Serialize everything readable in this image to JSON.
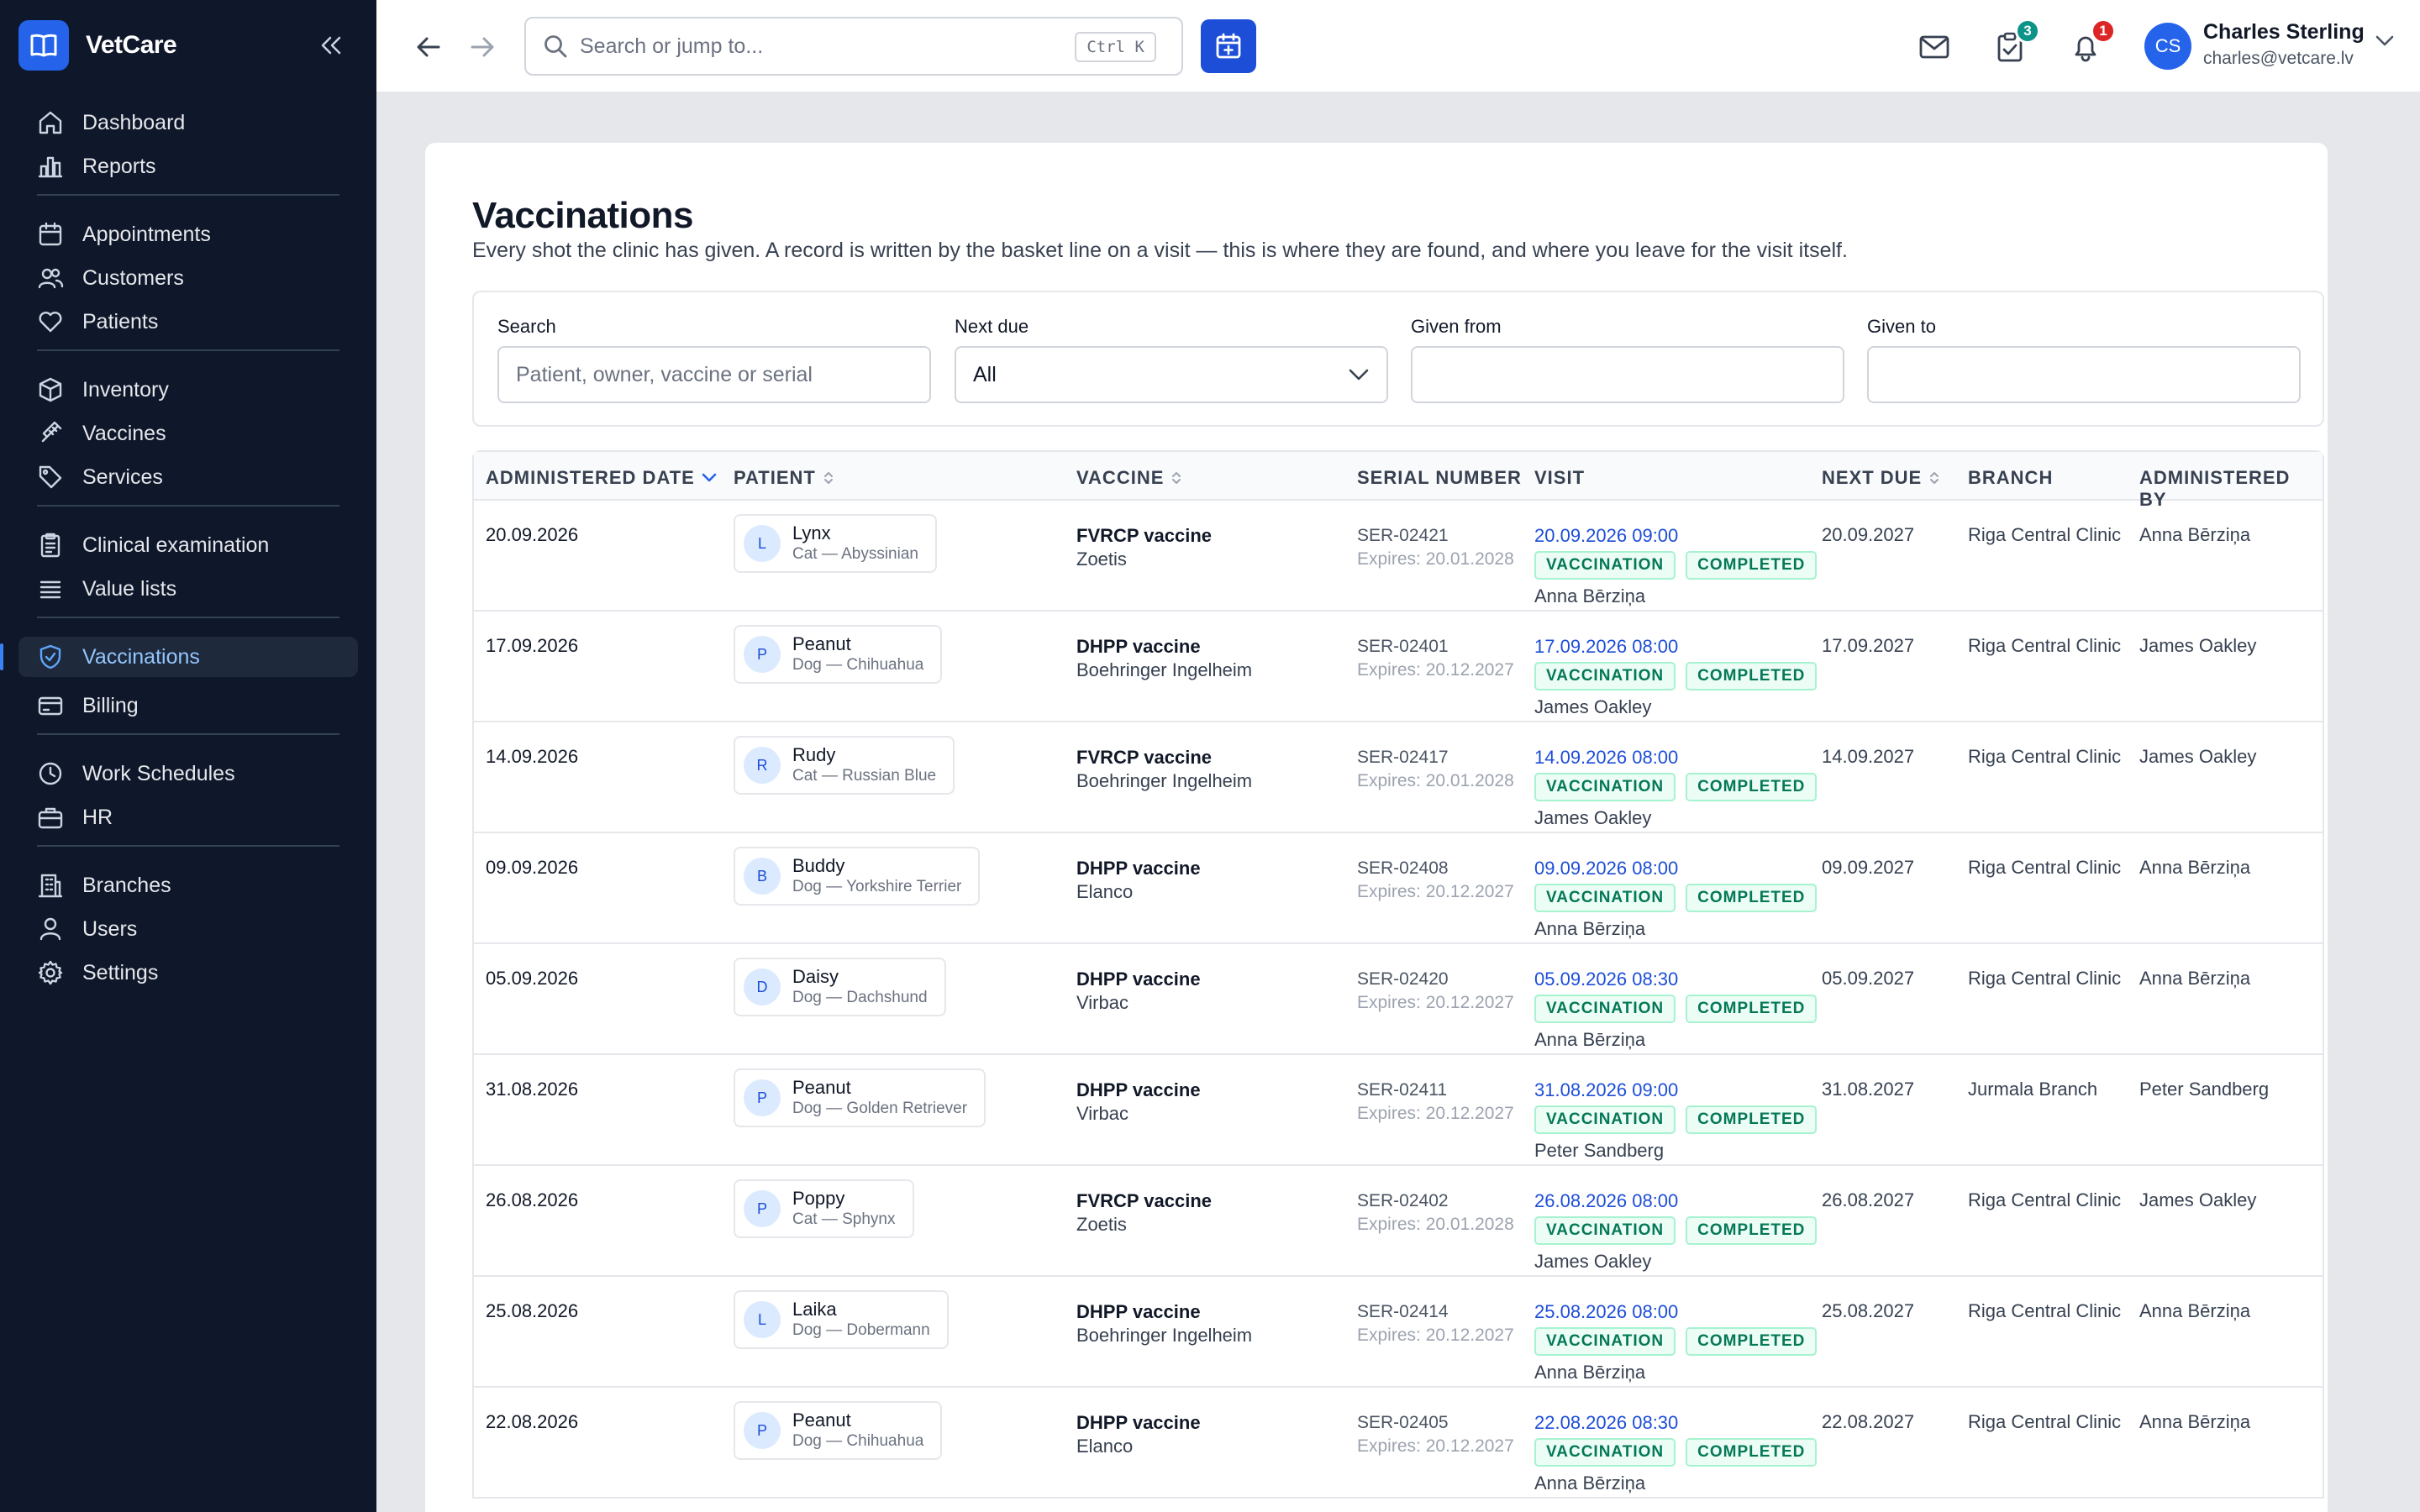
{
  "brand": {
    "name": "VetCare"
  },
  "sidebar": {
    "groups": [
      [
        {
          "label": "Dashboard",
          "icon": "home-icon"
        },
        {
          "label": "Reports",
          "icon": "bar-chart-icon"
        }
      ],
      [
        {
          "label": "Appointments",
          "icon": "calendar-icon"
        },
        {
          "label": "Customers",
          "icon": "users-icon"
        },
        {
          "label": "Patients",
          "icon": "heart-icon"
        }
      ],
      [
        {
          "label": "Inventory",
          "icon": "box-icon"
        },
        {
          "label": "Vaccines",
          "icon": "syringe-icon"
        },
        {
          "label": "Services",
          "icon": "tag-icon"
        }
      ],
      [
        {
          "label": "Clinical examination",
          "icon": "clipboard-icon"
        },
        {
          "label": "Value lists",
          "icon": "list-icon"
        }
      ],
      [
        {
          "label": "Vaccinations",
          "icon": "shield-check-icon",
          "active": true
        },
        {
          "label": "Billing",
          "icon": "credit-card-icon"
        }
      ],
      [
        {
          "label": "Work Schedules",
          "icon": "clock-icon"
        },
        {
          "label": "HR",
          "icon": "briefcase-icon"
        }
      ],
      [
        {
          "label": "Branches",
          "icon": "building-icon"
        },
        {
          "label": "Users",
          "icon": "user-icon"
        },
        {
          "label": "Settings",
          "icon": "gear-icon"
        }
      ]
    ]
  },
  "topbar": {
    "search_placeholder": "Search or jump to...",
    "shortcut": "Ctrl K",
    "tasks_count": "3",
    "notifications_count": "1",
    "user": {
      "initials": "CS",
      "name": "Charles Sterling",
      "email": "charles@vetcare.lv"
    }
  },
  "colors": {
    "accent": "#1d4ed8",
    "sidebar_bg": "#0f172a",
    "tasks_badge": "#0d9488",
    "notif_badge": "#dc2626",
    "tag_green": "#047857"
  },
  "page": {
    "title": "Vaccinations",
    "subtitle": "Every shot the clinic has given. A record is written by the basket line on a visit — this is where they are found, and where you leave for the visit itself."
  },
  "filters": {
    "search_label": "Search",
    "search_placeholder": "Patient, owner, vaccine or serial",
    "next_due_label": "Next due",
    "next_due_value": "All",
    "given_from_label": "Given from",
    "given_from_value": "",
    "given_to_label": "Given to",
    "given_to_value": ""
  },
  "table": {
    "columns": [
      "ADMINISTERED DATE",
      "PATIENT",
      "VACCINE",
      "SERIAL NUMBER",
      "VISIT",
      "NEXT DUE",
      "BRANCH",
      "ADMINISTERED BY"
    ],
    "rows": [
      {
        "date": "20.09.2026",
        "initial": "L",
        "patient": "Lynx",
        "species": "Cat — Abyssinian",
        "vaccine": "FVRCP vaccine",
        "maker": "Zoetis",
        "serial": "SER-02421",
        "expires": "Expires: 20.01.2028",
        "visit": "20.09.2026 09:00",
        "tag1": "VACCINATION",
        "tag2": "COMPLETED",
        "visit_by": "Anna Bērziņa",
        "next_due": "20.09.2027",
        "branch": "Riga Central Clinic",
        "by": "Anna Bērziņa"
      },
      {
        "date": "17.09.2026",
        "initial": "P",
        "patient": "Peanut",
        "species": "Dog — Chihuahua",
        "vaccine": "DHPP vaccine",
        "maker": "Boehringer Ingelheim",
        "serial": "SER-02401",
        "expires": "Expires: 20.12.2027",
        "visit": "17.09.2026 08:00",
        "tag1": "VACCINATION",
        "tag2": "COMPLETED",
        "visit_by": "James Oakley",
        "next_due": "17.09.2027",
        "branch": "Riga Central Clinic",
        "by": "James Oakley"
      },
      {
        "date": "14.09.2026",
        "initial": "R",
        "patient": "Rudy",
        "species": "Cat — Russian Blue",
        "vaccine": "FVRCP vaccine",
        "maker": "Boehringer Ingelheim",
        "serial": "SER-02417",
        "expires": "Expires: 20.01.2028",
        "visit": "14.09.2026 08:00",
        "tag1": "VACCINATION",
        "tag2": "COMPLETED",
        "visit_by": "James Oakley",
        "next_due": "14.09.2027",
        "branch": "Riga Central Clinic",
        "by": "James Oakley"
      },
      {
        "date": "09.09.2026",
        "initial": "B",
        "patient": "Buddy",
        "species": "Dog — Yorkshire Terrier",
        "vaccine": "DHPP vaccine",
        "maker": "Elanco",
        "serial": "SER-02408",
        "expires": "Expires: 20.12.2027",
        "visit": "09.09.2026 08:00",
        "tag1": "VACCINATION",
        "tag2": "COMPLETED",
        "visit_by": "Anna Bērziņa",
        "next_due": "09.09.2027",
        "branch": "Riga Central Clinic",
        "by": "Anna Bērziņa"
      },
      {
        "date": "05.09.2026",
        "initial": "D",
        "patient": "Daisy",
        "species": "Dog — Dachshund",
        "vaccine": "DHPP vaccine",
        "maker": "Virbac",
        "serial": "SER-02420",
        "expires": "Expires: 20.12.2027",
        "visit": "05.09.2026 08:30",
        "tag1": "VACCINATION",
        "tag2": "COMPLETED",
        "visit_by": "Anna Bērziņa",
        "next_due": "05.09.2027",
        "branch": "Riga Central Clinic",
        "by": "Anna Bērziņa"
      },
      {
        "date": "31.08.2026",
        "initial": "P",
        "patient": "Peanut",
        "species": "Dog — Golden Retriever",
        "vaccine": "DHPP vaccine",
        "maker": "Virbac",
        "serial": "SER-02411",
        "expires": "Expires: 20.12.2027",
        "visit": "31.08.2026 09:00",
        "tag1": "VACCINATION",
        "tag2": "COMPLETED",
        "visit_by": "Peter Sandberg",
        "next_due": "31.08.2027",
        "branch": "Jurmala Branch",
        "by": "Peter Sandberg"
      },
      {
        "date": "26.08.2026",
        "initial": "P",
        "patient": "Poppy",
        "species": "Cat — Sphynx",
        "vaccine": "FVRCP vaccine",
        "maker": "Zoetis",
        "serial": "SER-02402",
        "expires": "Expires: 20.01.2028",
        "visit": "26.08.2026 08:00",
        "tag1": "VACCINATION",
        "tag2": "COMPLETED",
        "visit_by": "James Oakley",
        "next_due": "26.08.2027",
        "branch": "Riga Central Clinic",
        "by": "James Oakley"
      },
      {
        "date": "25.08.2026",
        "initial": "L",
        "patient": "Laika",
        "species": "Dog — Dobermann",
        "vaccine": "DHPP vaccine",
        "maker": "Boehringer Ingelheim",
        "serial": "SER-02414",
        "expires": "Expires: 20.12.2027",
        "visit": "25.08.2026 08:00",
        "tag1": "VACCINATION",
        "tag2": "COMPLETED",
        "visit_by": "Anna Bērziņa",
        "next_due": "25.08.2027",
        "branch": "Riga Central Clinic",
        "by": "Anna Bērziņa"
      },
      {
        "date": "22.08.2026",
        "initial": "P",
        "patient": "Peanut",
        "species": "Dog — Chihuahua",
        "vaccine": "DHPP vaccine",
        "maker": "Elanco",
        "serial": "SER-02405",
        "expires": "Expires: 20.12.2027",
        "visit": "22.08.2026 08:30",
        "tag1": "VACCINATION",
        "tag2": "COMPLETED",
        "visit_by": "Anna Bērziņa",
        "next_due": "22.08.2027",
        "branch": "Riga Central Clinic",
        "by": "Anna Bērziņa"
      }
    ]
  }
}
